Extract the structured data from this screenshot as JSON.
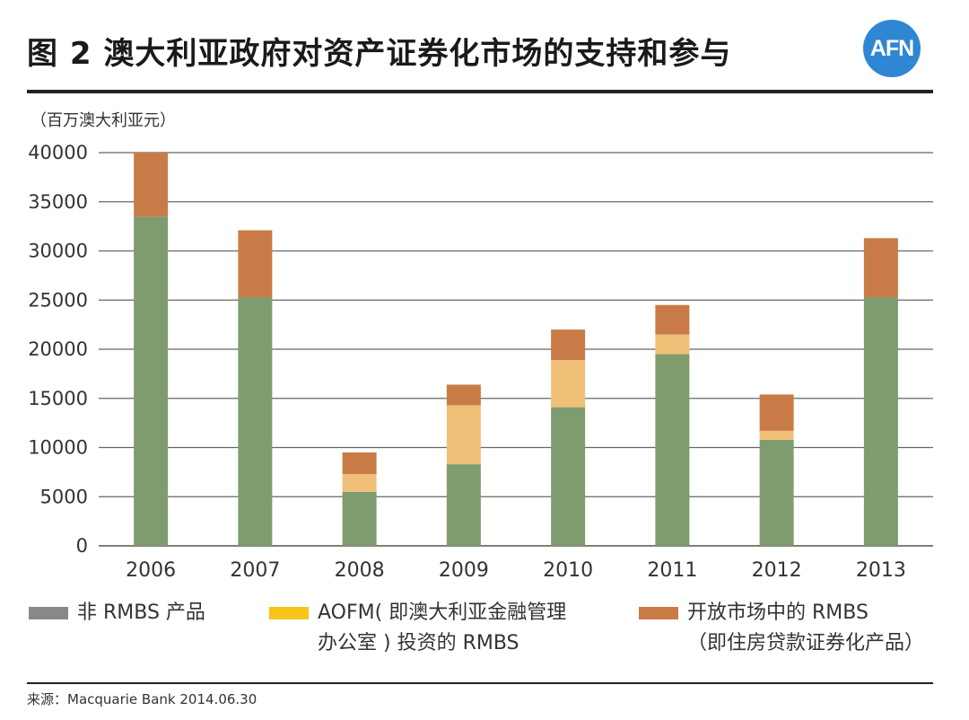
{
  "title": "图 2  澳大利亚政府对资产证券化市场的支持和参与",
  "logo": {
    "text": "AFN",
    "color": "#2f86d3"
  },
  "unit_label": "（百万澳大利亚元）",
  "source": "来源：Macquarie Bank 2014.06.30",
  "chart_data": {
    "type": "bar",
    "stacked": true,
    "categories": [
      "2006",
      "2007",
      "2008",
      "2009",
      "2010",
      "2011",
      "2012",
      "2013"
    ],
    "series": [
      {
        "name": "非 RMBS 产品",
        "color": "#7f9c6e",
        "values": [
          33500,
          25300,
          5500,
          8300,
          14100,
          19500,
          10800,
          25300
        ]
      },
      {
        "name": "AOFM( 即澳大利亚金融管理办公室 ) 投资的 RMBS",
        "color": "#f0c078",
        "values": [
          0,
          0,
          1800,
          6000,
          4800,
          2000,
          900,
          0
        ]
      },
      {
        "name": "开放市场中的 RMBS（即住房贷款证券化产品）",
        "color": "#c97b47",
        "values": [
          6500,
          6800,
          2200,
          2100,
          3100,
          3000,
          3700,
          6000
        ]
      }
    ],
    "y_ticks": [
      "40000",
      "35000",
      "30000",
      "25000",
      "20000",
      "15000",
      "10000",
      "5000",
      "0"
    ],
    "ylim": [
      0,
      40000
    ],
    "grid": true,
    "legend_position": "bottom"
  },
  "legend": [
    {
      "swatch_color": "#888888",
      "line1": "非 RMBS 产品",
      "line2": ""
    },
    {
      "swatch_color": "#f5c518",
      "line1": "AOFM( 即澳大利亚金融管理",
      "line2": "办公室 ) 投资的 RMBS"
    },
    {
      "swatch_color": "#c97b47",
      "line1": "开放市场中的 RMBS",
      "line2": "（即住房贷款证券化产品）"
    }
  ]
}
